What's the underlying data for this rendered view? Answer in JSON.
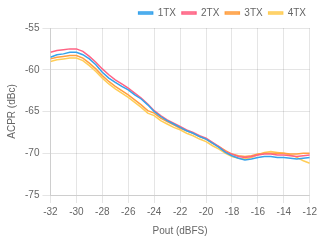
{
  "chart_data": {
    "type": "line",
    "xlabel": "Pout (dBFS)",
    "ylabel": "ACPR (dBc)",
    "xlim": [
      -32,
      -12
    ],
    "ylim": [
      -75,
      -55
    ],
    "xticks": [
      -32,
      -30,
      -28,
      -26,
      -24,
      -22,
      -20,
      -18,
      -16,
      -14,
      -12
    ],
    "yticks": [
      -75,
      -70,
      -65,
      -60,
      -55
    ],
    "grid": true,
    "legend": "upper right",
    "x": [
      -32,
      -31.5,
      -31,
      -30.5,
      -30,
      -29.5,
      -29,
      -28.5,
      -28,
      -27.5,
      -27,
      -26.5,
      -26,
      -25.5,
      -25,
      -24.5,
      -24,
      -23.5,
      -23,
      -22.5,
      -22,
      -21.5,
      -21,
      -20.5,
      -20,
      -19.5,
      -19,
      -18.5,
      -18,
      -17.5,
      -17,
      -16.5,
      -16,
      -15.5,
      -15,
      -14.5,
      -14,
      -13.5,
      -13,
      -12.5,
      -12
    ],
    "series": [
      {
        "name": "1TX",
        "values": [
          -58.5,
          -58.2,
          -58.1,
          -57.9,
          -57.9,
          -58.2,
          -58.7,
          -59.4,
          -60.3,
          -61.0,
          -61.5,
          -62.0,
          -62.4,
          -63.0,
          -63.5,
          -64.2,
          -65.0,
          -65.6,
          -66.1,
          -66.5,
          -66.9,
          -67.3,
          -67.6,
          -68.0,
          -68.3,
          -68.8,
          -69.3,
          -69.9,
          -70.3,
          -70.6,
          -70.8,
          -70.7,
          -70.5,
          -70.4,
          -70.4,
          -70.5,
          -70.5,
          -70.6,
          -70.7,
          -70.6,
          -70.5
        ]
      },
      {
        "name": "2TX",
        "values": [
          -57.9,
          -57.7,
          -57.6,
          -57.5,
          -57.5,
          -57.8,
          -58.4,
          -59.1,
          -59.9,
          -60.6,
          -61.2,
          -61.7,
          -62.2,
          -62.8,
          -63.4,
          -64.1,
          -64.9,
          -65.5,
          -66.0,
          -66.4,
          -66.8,
          -67.2,
          -67.5,
          -67.9,
          -68.2,
          -68.7,
          -69.2,
          -69.8,
          -70.1,
          -70.4,
          -70.5,
          -70.4,
          -70.2,
          -70.1,
          -70.1,
          -70.2,
          -70.2,
          -70.3,
          -70.4,
          -70.3,
          -70.2
        ]
      },
      {
        "name": "3TX",
        "values": [
          -58.7,
          -58.5,
          -58.4,
          -58.3,
          -58.3,
          -58.6,
          -59.2,
          -59.9,
          -60.7,
          -61.4,
          -62.0,
          -62.5,
          -63.0,
          -63.6,
          -64.2,
          -64.9,
          -65.2,
          -65.8,
          -66.2,
          -66.6,
          -67.0,
          -67.3,
          -67.6,
          -68.0,
          -68.3,
          -68.8,
          -69.2,
          -69.7,
          -70.1,
          -70.3,
          -70.4,
          -70.3,
          -70.1,
          -70.0,
          -70.0,
          -70.0,
          -70.0,
          -70.1,
          -70.1,
          -70.0,
          -70.0
        ]
      },
      {
        "name": "4TX",
        "values": [
          -59.0,
          -58.8,
          -58.7,
          -58.6,
          -58.6,
          -58.9,
          -59.5,
          -60.2,
          -61.0,
          -61.7,
          -62.3,
          -62.8,
          -63.3,
          -63.9,
          -64.5,
          -65.2,
          -65.5,
          -66.1,
          -66.5,
          -66.9,
          -67.2,
          -67.6,
          -67.9,
          -68.3,
          -68.6,
          -69.1,
          -69.5,
          -70.0,
          -70.4,
          -70.6,
          -70.7,
          -70.5,
          -70.2,
          -69.9,
          -69.8,
          -69.9,
          -70.0,
          -70.2,
          -70.5,
          -70.9,
          -71.2
        ]
      }
    ]
  }
}
